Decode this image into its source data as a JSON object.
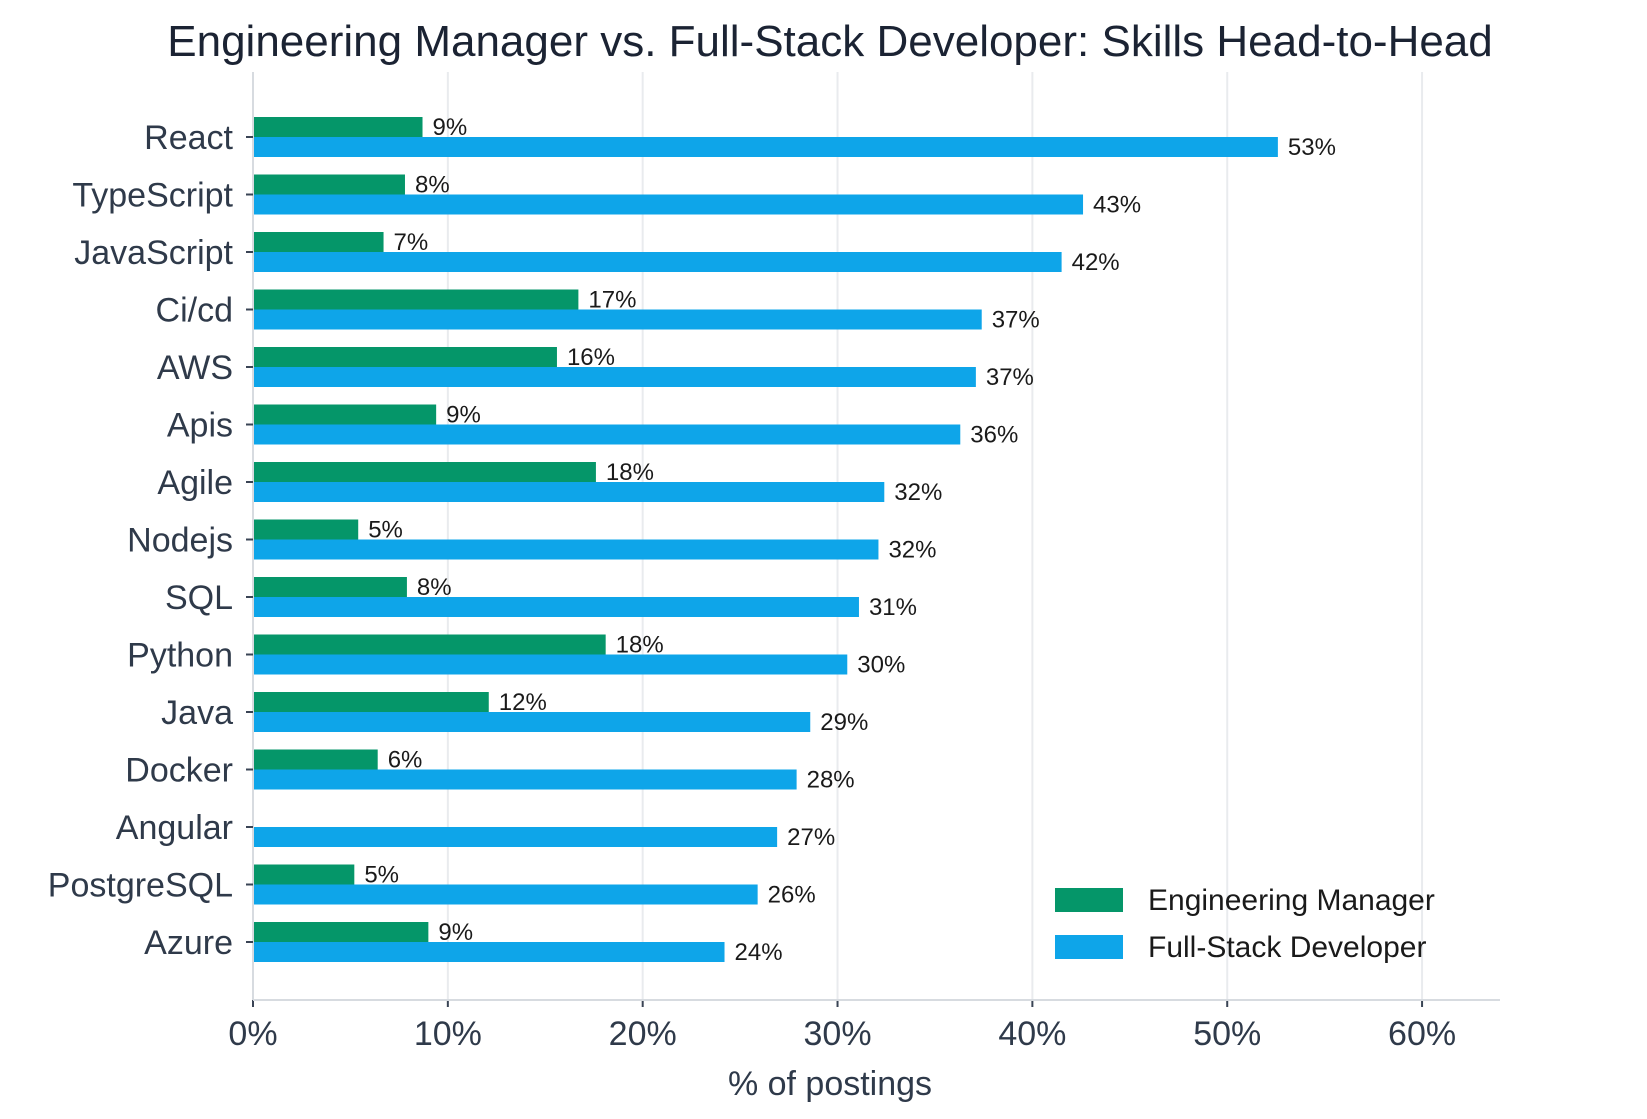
{
  "chart_data": {
    "type": "bar",
    "orientation": "horizontal",
    "title": "Engineering Manager vs. Full-Stack Developer: Skills Head-to-Head",
    "xlabel": "% of postings",
    "ylabel": "",
    "xlim": [
      0,
      64
    ],
    "x_ticks": [
      0,
      10,
      20,
      30,
      40,
      50,
      60
    ],
    "x_tick_labels": [
      "0%",
      "10%",
      "20%",
      "30%",
      "40%",
      "50%",
      "60%"
    ],
    "grid": true,
    "legend_position": "lower-right",
    "categories": [
      "React",
      "TypeScript",
      "JavaScript",
      "Ci/cd",
      "AWS",
      "Apis",
      "Agile",
      "Nodejs",
      "SQL",
      "Python",
      "Java",
      "Docker",
      "Angular",
      "PostgreSQL",
      "Azure"
    ],
    "series": [
      {
        "name": "Engineering Manager",
        "color": "#059669",
        "values": [
          8.7,
          7.8,
          6.7,
          16.7,
          15.6,
          9.4,
          17.6,
          5.4,
          7.9,
          18.1,
          12.1,
          6.4,
          null,
          5.2,
          9.0
        ],
        "labels": [
          "9%",
          "8%",
          "7%",
          "17%",
          "16%",
          "9%",
          "18%",
          "5%",
          "8%",
          "18%",
          "12%",
          "6%",
          "",
          "5%",
          "9%"
        ]
      },
      {
        "name": "Full-Stack Developer",
        "color": "#0ea5e9",
        "values": [
          52.6,
          42.6,
          41.5,
          37.4,
          37.1,
          36.3,
          32.4,
          32.1,
          31.1,
          30.5,
          28.6,
          27.9,
          26.9,
          25.9,
          24.2
        ],
        "labels": [
          "53%",
          "43%",
          "42%",
          "37%",
          "37%",
          "36%",
          "32%",
          "32%",
          "31%",
          "30%",
          "29%",
          "28%",
          "27%",
          "26%",
          "24%"
        ]
      }
    ]
  }
}
